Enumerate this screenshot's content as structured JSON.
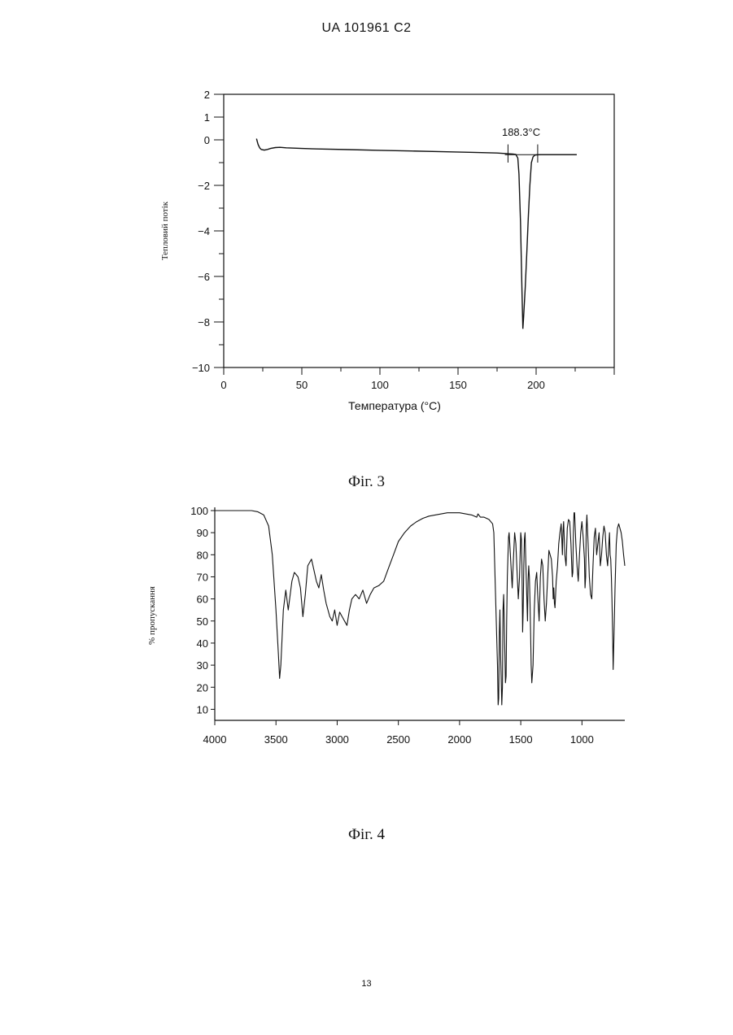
{
  "page": {
    "header": "UA   101961   C2",
    "footer": "13",
    "fig3_caption": "Фіг. 3",
    "fig4_caption": "Фіг. 4"
  },
  "chart_data": [
    {
      "type": "line",
      "title": "",
      "xlabel": "Температура  (°C)",
      "ylabel": "Тепловий потік",
      "xlim": [
        0,
        250
      ],
      "ylim": [
        -10,
        2
      ],
      "x_ticks": [
        0,
        50,
        100,
        150,
        200
      ],
      "y_ticks": [
        2,
        1,
        0,
        -2,
        -4,
        -6,
        -8,
        -10
      ],
      "y_tick_labels": [
        "2",
        "1",
        "0",
        "−2",
        "−4",
        "−6",
        "−8",
        "−10"
      ],
      "annotation": {
        "text": "188.3°C",
        "x": 188.3
      },
      "baseline": {
        "x": [
          180,
          226
        ],
        "y": [
          -0.65,
          -0.65
        ]
      },
      "series": [
        {
          "x": [
            21,
            22,
            23,
            24,
            26,
            28,
            30,
            33,
            36,
            40,
            50,
            60,
            80,
            100,
            120,
            140,
            160,
            175,
            180,
            185,
            187,
            188.3,
            189,
            190,
            191,
            191.5,
            192,
            193,
            194,
            195,
            196,
            197,
            198,
            199,
            200,
            203,
            210,
            220,
            226
          ],
          "y": [
            0.05,
            -0.2,
            -0.35,
            -0.42,
            -0.45,
            -0.42,
            -0.38,
            -0.34,
            -0.33,
            -0.35,
            -0.38,
            -0.4,
            -0.43,
            -0.46,
            -0.49,
            -0.52,
            -0.55,
            -0.58,
            -0.6,
            -0.62,
            -0.64,
            -0.8,
            -1.5,
            -3.6,
            -6.8,
            -8.3,
            -7.8,
            -6.5,
            -5.0,
            -3.4,
            -2.0,
            -1.0,
            -0.75,
            -0.68,
            -0.66,
            -0.65,
            -0.65,
            -0.65,
            -0.65
          ]
        }
      ]
    },
    {
      "type": "line",
      "title": "",
      "xlabel": "",
      "ylabel": "% пропускання",
      "xlim": [
        4000,
        650
      ],
      "ylim": [
        5,
        100
      ],
      "x_ticks": [
        4000,
        3500,
        3000,
        2500,
        2000,
        1500,
        1000
      ],
      "y_ticks": [
        100,
        90,
        80,
        70,
        60,
        50,
        40,
        30,
        20,
        10
      ],
      "series": [
        {
          "x": [
            4000,
            3900,
            3800,
            3700,
            3650,
            3600,
            3560,
            3530,
            3500,
            3480,
            3470,
            3460,
            3440,
            3420,
            3400,
            3370,
            3350,
            3320,
            3300,
            3280,
            3260,
            3240,
            3210,
            3190,
            3170,
            3150,
            3130,
            3110,
            3090,
            3060,
            3040,
            3020,
            3000,
            2980,
            2960,
            2940,
            2920,
            2900,
            2880,
            2850,
            2820,
            2790,
            2760,
            2730,
            2700,
            2660,
            2620,
            2580,
            2540,
            2500,
            2450,
            2400,
            2350,
            2300,
            2250,
            2200,
            2100,
            2000,
            1900,
            1860,
            1850,
            1830,
            1800,
            1760,
            1730,
            1720,
            1700,
            1690,
            1685,
            1680,
            1675,
            1670,
            1665,
            1660,
            1655,
            1650,
            1645,
            1640,
            1635,
            1630,
            1625,
            1620,
            1615,
            1610,
            1600,
            1595,
            1590,
            1580,
            1570,
            1560,
            1550,
            1540,
            1530,
            1520,
            1510,
            1500,
            1495,
            1490,
            1485,
            1480,
            1475,
            1470,
            1465,
            1460,
            1450,
            1445,
            1440,
            1435,
            1430,
            1425,
            1420,
            1415,
            1410,
            1400,
            1390,
            1380,
            1370,
            1360,
            1350,
            1340,
            1330,
            1320,
            1310,
            1300,
            1290,
            1280,
            1270,
            1260,
            1250,
            1240,
            1235,
            1230,
            1225,
            1220,
            1210,
            1200,
            1190,
            1180,
            1170,
            1165,
            1160,
            1155,
            1150,
            1140,
            1130,
            1120,
            1110,
            1100,
            1090,
            1080,
            1075,
            1070,
            1065,
            1060,
            1050,
            1040,
            1030,
            1020,
            1010,
            1000,
            990,
            980,
            975,
            970,
            965,
            960,
            955,
            950,
            940,
            930,
            920,
            910,
            900,
            890,
            880,
            870,
            860,
            850,
            840,
            830,
            820,
            810,
            800,
            790,
            780,
            775,
            770,
            765,
            760,
            755,
            750,
            745,
            740,
            730,
            720,
            710,
            700,
            690,
            680,
            670,
            660,
            650
          ],
          "y": [
            100,
            100,
            100,
            100,
            99.5,
            98,
            93,
            80,
            55,
            35,
            24,
            30,
            55,
            64,
            55,
            68,
            72,
            70,
            65,
            52,
            62,
            75,
            78,
            73,
            68,
            65,
            71,
            64,
            58,
            52,
            50,
            55,
            48,
            54,
            52,
            50,
            48,
            55,
            60,
            62,
            60,
            64,
            58,
            62,
            65,
            66,
            68,
            74,
            80,
            86,
            90,
            93,
            95,
            96.5,
            97.5,
            98,
            99,
            99,
            98,
            97,
            98.5,
            97,
            97,
            96,
            94,
            90,
            50,
            30,
            12,
            15,
            45,
            55,
            35,
            25,
            12,
            20,
            55,
            62,
            50,
            35,
            22,
            25,
            50,
            70,
            88,
            90,
            85,
            75,
            65,
            78,
            90,
            85,
            72,
            60,
            70,
            90,
            87,
            75,
            45,
            55,
            75,
            87,
            90,
            80,
            60,
            50,
            68,
            75,
            70,
            60,
            45,
            30,
            22,
            30,
            55,
            68,
            72,
            60,
            50,
            70,
            78,
            75,
            60,
            50,
            58,
            70,
            82,
            80,
            78,
            70,
            60,
            65,
            58,
            56,
            68,
            75,
            85,
            90,
            94,
            88,
            80,
            90,
            95,
            80,
            75,
            92,
            96,
            95,
            85,
            70,
            72,
            90,
            99,
            99,
            85,
            75,
            68,
            80,
            90,
            95,
            88,
            78,
            65,
            70,
            92,
            98,
            92,
            85,
            70,
            62,
            60,
            75,
            88,
            92,
            80,
            85,
            90,
            75,
            80,
            88,
            93,
            90,
            80,
            75,
            85,
            90,
            80,
            78,
            70,
            60,
            45,
            28,
            40,
            65,
            85,
            92,
            94,
            92,
            90,
            86,
            80,
            75
          ]
        }
      ]
    }
  ]
}
